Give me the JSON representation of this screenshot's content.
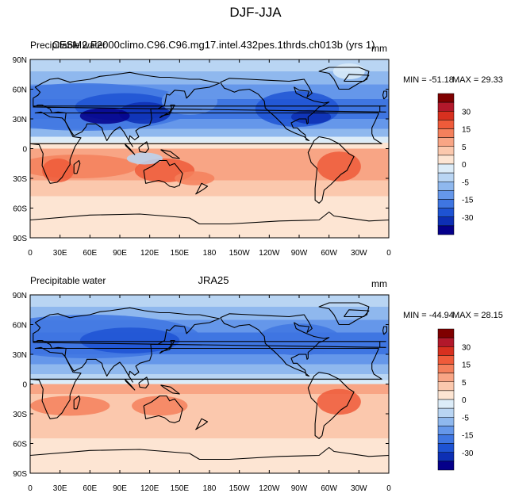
{
  "figure_title": "DJF-JJA",
  "chart_data": [
    {
      "type": "heatmap",
      "title_left": "Precipitable water",
      "title_center": "CESM2.F2000climo.C96.C96.mg17.intel.432pes.1thrds.ch013b (yrs 1)",
      "units": "mm",
      "min_label": "MIN = -51.18",
      "max_label": "MAX =  29.33",
      "min": -51.18,
      "max": 29.33,
      "y_tick_labels": [
        "90N",
        "60N",
        "30N",
        "0",
        "30S",
        "60S",
        "90S"
      ],
      "x_tick_labels": [
        "0",
        "30E",
        "60E",
        "90E",
        "120E",
        "150E",
        "180",
        "150W",
        "120W",
        "90W",
        "60W",
        "30W",
        "0"
      ],
      "xlim": [
        0,
        360
      ],
      "ylim": [
        -90,
        90
      ]
    },
    {
      "type": "heatmap",
      "title_left": "Precipitable water",
      "title_center": "JRA25",
      "units": "mm",
      "min_label": "MIN = -44.94",
      "max_label": "MAX =  28.15",
      "min": -44.94,
      "max": 28.15,
      "y_tick_labels": [
        "90N",
        "60N",
        "30N",
        "0",
        "30S",
        "60S",
        "90S"
      ],
      "x_tick_labels": [
        "0",
        "30E",
        "60E",
        "90E",
        "120E",
        "150E",
        "180",
        "150W",
        "120W",
        "90W",
        "60W",
        "30W",
        "0"
      ],
      "xlim": [
        0,
        360
      ],
      "ylim": [
        -90,
        90
      ]
    }
  ],
  "colorbar": {
    "labels": [
      "30",
      "15",
      "5",
      "0",
      "-5",
      "-15",
      "-30"
    ],
    "colors": [
      "#7f0000",
      "#b2182b",
      "#d7301f",
      "#ef5b3a",
      "#f4805c",
      "#f8a585",
      "#fbc8ad",
      "#fde5d3",
      "#dcecf8",
      "#b9d5f3",
      "#8fb8ee",
      "#6597ea",
      "#3f76e2",
      "#1e53d3",
      "#0d2fb4",
      "#05008a"
    ]
  }
}
